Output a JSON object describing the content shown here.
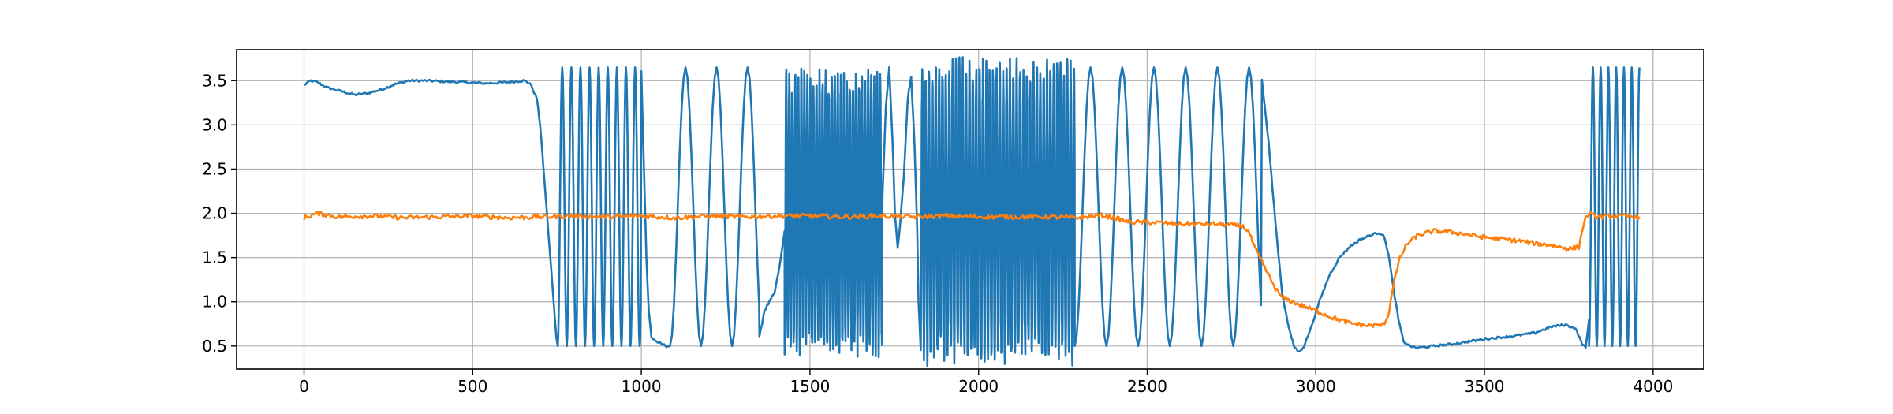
{
  "chart_data": {
    "type": "line",
    "title": "",
    "xlabel": "",
    "ylabel": "",
    "xlim": [
      -200,
      4150
    ],
    "ylim": [
      0.24,
      3.85
    ],
    "grid": true,
    "xticks": [
      0,
      500,
      1000,
      1500,
      2000,
      2500,
      3000,
      3500,
      4000
    ],
    "xtick_labels": [
      "0",
      "500",
      "1000",
      "1500",
      "2000",
      "2500",
      "3000",
      "3500",
      "4000"
    ],
    "yticks": [
      0.5,
      1.0,
      1.5,
      2.0,
      2.5,
      3.0,
      3.5
    ],
    "ytick_labels": [
      "0.5",
      "1.0",
      "1.5",
      "2.0",
      "2.5",
      "3.0",
      "3.5"
    ],
    "series": [
      {
        "color": "#1f77b4",
        "segments": [
          {
            "kind": "path",
            "points": [
              [
                0,
                3.45
              ],
              [
                20,
                3.5
              ],
              [
                40,
                3.48
              ],
              [
                70,
                3.42
              ],
              [
                110,
                3.38
              ],
              [
                150,
                3.34
              ],
              [
                190,
                3.36
              ],
              [
                230,
                3.4
              ],
              [
                270,
                3.46
              ],
              [
                310,
                3.5
              ],
              [
                360,
                3.5
              ],
              [
                420,
                3.49
              ],
              [
                480,
                3.48
              ],
              [
                540,
                3.47
              ],
              [
                600,
                3.48
              ],
              [
                650,
                3.5
              ],
              [
                670,
                3.47
              ],
              [
                690,
                3.3
              ],
              [
                700,
                3.0
              ],
              [
                710,
                2.5
              ],
              [
                720,
                2.0
              ],
              [
                730,
                1.5
              ],
              [
                740,
                1.0
              ],
              [
                748,
                0.6
              ],
              [
                752,
                0.5
              ]
            ]
          },
          {
            "kind": "osc",
            "start": 752,
            "end": 1000,
            "period": 27,
            "low": 0.5,
            "high": 3.65
          },
          {
            "kind": "path",
            "points": [
              [
                1000,
                3.6
              ],
              [
                1008,
                2.5
              ],
              [
                1015,
                1.5
              ],
              [
                1022,
                0.9
              ],
              [
                1030,
                0.6
              ],
              [
                1045,
                0.55
              ],
              [
                1060,
                0.52
              ],
              [
                1075,
                0.5
              ],
              [
                1085,
                0.5
              ]
            ]
          },
          {
            "kind": "osc",
            "start": 1085,
            "end": 1350,
            "period": 92,
            "low": 0.5,
            "high": 3.65
          },
          {
            "kind": "path",
            "points": [
              [
                1350,
                0.6
              ],
              [
                1365,
                0.9
              ],
              [
                1380,
                1.0
              ],
              [
                1395,
                1.1
              ],
              [
                1410,
                1.4
              ],
              [
                1425,
                1.8
              ]
            ]
          },
          {
            "kind": "osc",
            "start": 1425,
            "end": 1715,
            "period": 9,
            "low": 0.55,
            "high": 3.5
          },
          {
            "kind": "path",
            "points": [
              [
                1715,
                2.2
              ],
              [
                1725,
                3.2
              ],
              [
                1735,
                3.65
              ],
              [
                1745,
                2.8
              ],
              [
                1752,
                2.0
              ],
              [
                1760,
                1.6
              ],
              [
                1768,
                1.9
              ],
              [
                1778,
                2.4
              ],
              [
                1790,
                3.3
              ],
              [
                1800,
                3.55
              ],
              [
                1810,
                2.8
              ],
              [
                1818,
                1.8
              ],
              [
                1822,
                1.0
              ],
              [
                1828,
                0.5
              ]
            ]
          },
          {
            "kind": "osc",
            "start": 1828,
            "end": 2285,
            "period": 10,
            "low": 0.45,
            "high": 3.6
          },
          {
            "kind": "osc",
            "start": 2285,
            "end": 2840,
            "period": 94,
            "low": 0.5,
            "high": 3.65
          },
          {
            "kind": "path",
            "points": [
              [
                2840,
                3.5
              ],
              [
                2860,
                2.8
              ],
              [
                2880,
                1.9
              ],
              [
                2900,
                1.1
              ],
              [
                2920,
                0.7
              ],
              [
                2935,
                0.5
              ],
              [
                2950,
                0.43
              ],
              [
                2965,
                0.5
              ],
              [
                2985,
                0.7
              ],
              [
                3010,
                1.0
              ],
              [
                3040,
                1.3
              ],
              [
                3070,
                1.5
              ],
              [
                3100,
                1.62
              ],
              [
                3130,
                1.7
              ],
              [
                3160,
                1.75
              ],
              [
                3185,
                1.78
              ],
              [
                3200,
                1.76
              ],
              [
                3215,
                1.55
              ],
              [
                3230,
                1.15
              ],
              [
                3245,
                0.8
              ],
              [
                3260,
                0.55
              ],
              [
                3280,
                0.5
              ],
              [
                3300,
                0.48
              ],
              [
                3350,
                0.5
              ],
              [
                3400,
                0.52
              ],
              [
                3450,
                0.55
              ],
              [
                3500,
                0.58
              ],
              [
                3550,
                0.6
              ],
              [
                3600,
                0.62
              ],
              [
                3650,
                0.65
              ],
              [
                3700,
                0.72
              ],
              [
                3740,
                0.74
              ],
              [
                3770,
                0.7
              ],
              [
                3790,
                0.52
              ],
              [
                3800,
                0.48
              ],
              [
                3810,
                0.8
              ]
            ]
          },
          {
            "kind": "osc",
            "start": 3810,
            "end": 3960,
            "period": 23,
            "low": 0.5,
            "high": 3.65
          }
        ]
      },
      {
        "color": "#ff7f0e",
        "segments": [
          {
            "kind": "path",
            "points": [
              [
                0,
                1.95
              ],
              [
                40,
                2.0
              ],
              [
                100,
                1.96
              ],
              [
                200,
                1.97
              ],
              [
                300,
                1.95
              ],
              [
                400,
                1.96
              ],
              [
                500,
                1.97
              ],
              [
                600,
                1.95
              ],
              [
                700,
                1.96
              ],
              [
                800,
                1.97
              ],
              [
                900,
                1.96
              ],
              [
                1000,
                1.97
              ],
              [
                1100,
                1.95
              ],
              [
                1200,
                1.97
              ],
              [
                1300,
                1.96
              ],
              [
                1400,
                1.97
              ],
              [
                1500,
                1.97
              ],
              [
                1600,
                1.96
              ],
              [
                1700,
                1.97
              ],
              [
                1800,
                1.96
              ],
              [
                1900,
                1.97
              ],
              [
                2000,
                1.96
              ],
              [
                2100,
                1.96
              ],
              [
                2200,
                1.96
              ],
              [
                2300,
                1.95
              ],
              [
                2360,
                1.98
              ],
              [
                2400,
                1.95
              ],
              [
                2450,
                1.9
              ],
              [
                2500,
                1.9
              ],
              [
                2600,
                1.88
              ],
              [
                2700,
                1.88
              ],
              [
                2780,
                1.86
              ],
              [
                2800,
                1.8
              ],
              [
                2820,
                1.6
              ],
              [
                2840,
                1.45
              ],
              [
                2860,
                1.3
              ],
              [
                2880,
                1.15
              ],
              [
                2900,
                1.05
              ],
              [
                2950,
                0.97
              ],
              [
                3000,
                0.9
              ],
              [
                3050,
                0.82
              ],
              [
                3100,
                0.76
              ],
              [
                3150,
                0.73
              ],
              [
                3200,
                0.74
              ],
              [
                3215,
                0.85
              ],
              [
                3230,
                1.2
              ],
              [
                3250,
                1.5
              ],
              [
                3270,
                1.65
              ],
              [
                3300,
                1.75
              ],
              [
                3350,
                1.8
              ],
              [
                3400,
                1.79
              ],
              [
                3450,
                1.76
              ],
              [
                3500,
                1.73
              ],
              [
                3550,
                1.71
              ],
              [
                3600,
                1.69
              ],
              [
                3650,
                1.66
              ],
              [
                3700,
                1.64
              ],
              [
                3750,
                1.6
              ],
              [
                3780,
                1.62
              ],
              [
                3795,
                1.9
              ],
              [
                3810,
                2.0
              ],
              [
                3830,
                1.96
              ],
              [
                3900,
                1.97
              ],
              [
                3960,
                1.96
              ]
            ]
          }
        ]
      }
    ]
  }
}
